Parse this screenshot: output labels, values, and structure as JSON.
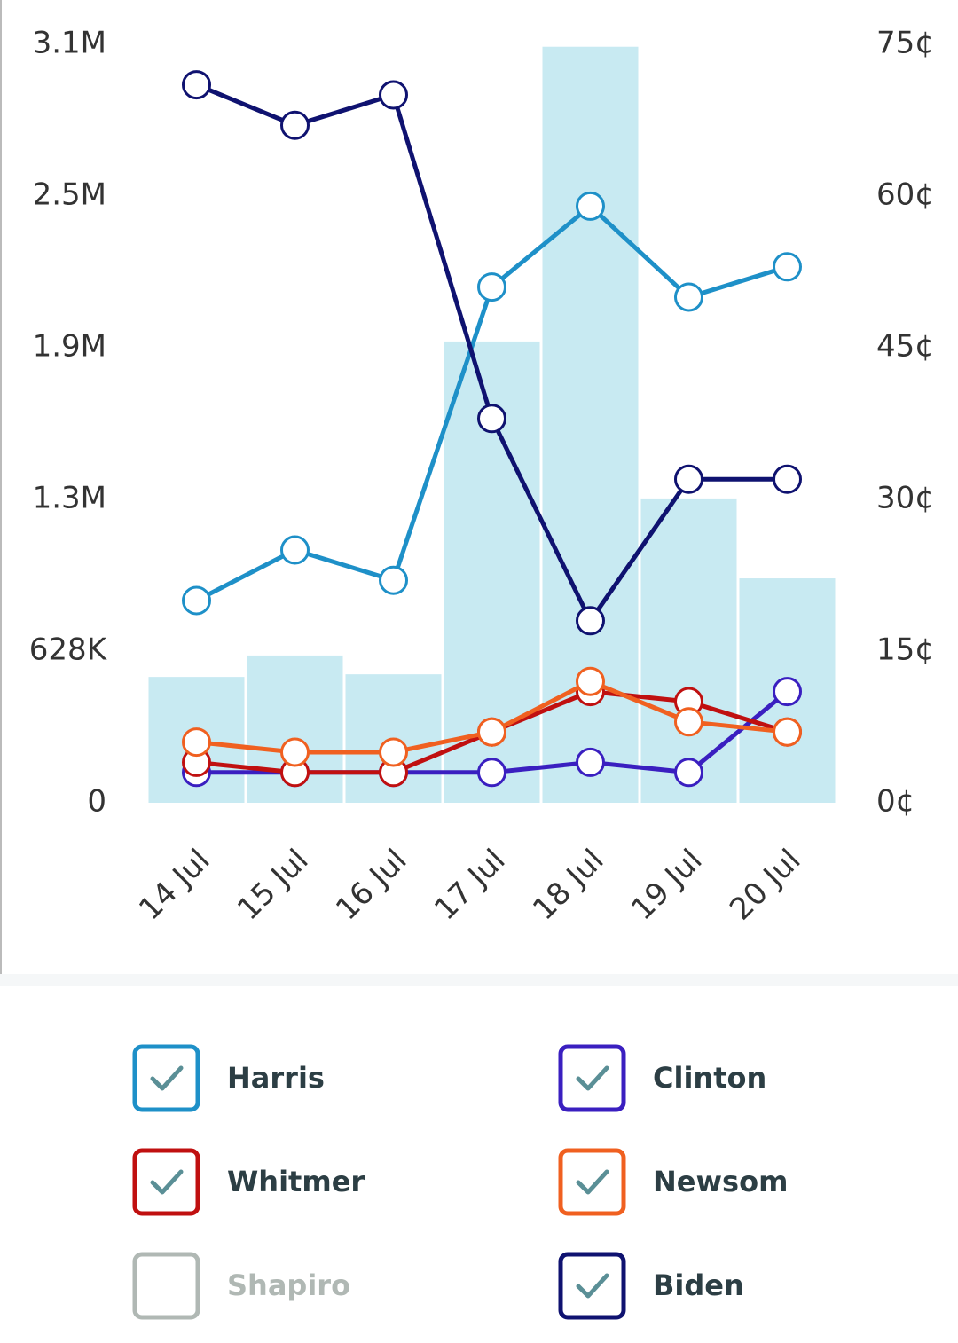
{
  "chart_data": {
    "type": "bar-line",
    "categories": [
      "14 Jul",
      "15 Jul",
      "16 Jul",
      "17 Jul",
      "18 Jul",
      "19 Jul",
      "20 Jul"
    ],
    "bars": {
      "color": "#c8eaf2",
      "values": [
        521000,
        610000,
        532000,
        1910000,
        3130000,
        1260000,
        929000
      ]
    },
    "ylim": [
      0,
      3140000
    ],
    "yticks": [
      0,
      {
        "value": 628000,
        "label": "628K"
      },
      {
        "value": 1256000,
        "label": "1.3M"
      },
      {
        "value": 1884000,
        "label": "1.9M"
      },
      {
        "value": 2512000,
        "label": "2.5M"
      },
      {
        "value": 3140000,
        "label": "3.1M"
      }
    ],
    "y2lim": [
      0,
      75
    ],
    "y2ticks": [
      {
        "value": 0,
        "label": "0¢"
      },
      {
        "value": 15,
        "label": "15¢"
      },
      {
        "value": 30,
        "label": "30¢"
      },
      {
        "value": 45,
        "label": "45¢"
      },
      {
        "value": 60,
        "label": "60¢"
      },
      {
        "value": 75,
        "label": "75¢"
      }
    ],
    "series": [
      {
        "name": "Harris",
        "color": "#1e90c8",
        "axis": "y2",
        "visible": true,
        "values": [
          20,
          25,
          22,
          51,
          59,
          50,
          53
        ]
      },
      {
        "name": "Clinton",
        "color": "#3a1fc0",
        "axis": "y2",
        "visible": true,
        "values": [
          3,
          3,
          3,
          3,
          4,
          3,
          11
        ]
      },
      {
        "name": "Whitmer",
        "color": "#c01010",
        "axis": "y2",
        "visible": true,
        "values": [
          4,
          3,
          3,
          7,
          11,
          10,
          7
        ]
      },
      {
        "name": "Newsom",
        "color": "#f06020",
        "axis": "y2",
        "visible": true,
        "values": [
          6,
          5,
          5,
          7,
          12,
          8,
          7
        ]
      },
      {
        "name": "Shapiro",
        "color": "#b0b8b4",
        "axis": "y2",
        "visible": false,
        "values": [
          null,
          null,
          null,
          null,
          null,
          null,
          null
        ]
      },
      {
        "name": "Biden",
        "color": "#0f1270",
        "axis": "y2",
        "visible": true,
        "values": [
          71,
          67,
          70,
          38,
          18,
          32,
          32
        ]
      }
    ]
  }
}
